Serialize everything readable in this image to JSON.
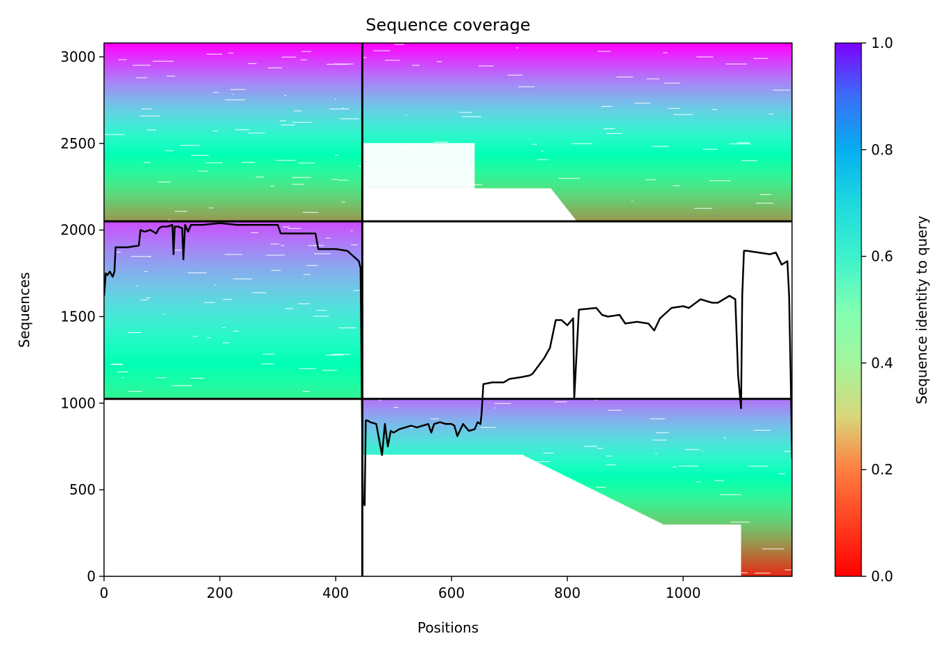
{
  "chart_data": {
    "type": "heatmap",
    "title": "Sequence coverage",
    "xlabel": "Positions",
    "ylabel": "Sequences",
    "xlim": [
      0,
      1188
    ],
    "ylim": [
      0,
      3080
    ],
    "x_ticks": [
      0,
      200,
      400,
      600,
      800,
      1000
    ],
    "y_ticks": [
      0,
      500,
      1000,
      1500,
      2000,
      2500,
      3000
    ],
    "colorbar": {
      "label": "Sequence identity to query",
      "colormap": "rainbow_r",
      "range": [
        0,
        1
      ],
      "ticks": [
        0.0,
        0.2,
        0.4,
        0.6,
        0.8,
        1.0
      ],
      "tick_labels": [
        "0.0",
        "0.2",
        "0.4",
        "0.6",
        "0.8",
        "1.0"
      ]
    },
    "chain_boundaries_x": [
      446
    ],
    "block_boundaries_y": [
      1025,
      2050
    ],
    "blocks": [
      {
        "x": [
          0,
          446
        ],
        "y": [
          2050,
          3080
        ],
        "identity_top": 1.0,
        "identity_bottom": 0.2,
        "density": "full"
      },
      {
        "x": [
          446,
          1188
        ],
        "y": [
          2050,
          3080
        ],
        "identity_top": 1.0,
        "identity_bottom": 0.2,
        "density": "partial"
      },
      {
        "x": [
          0,
          446
        ],
        "y": [
          1025,
          2050
        ],
        "identity_top": 0.9,
        "identity_bottom": 0.4,
        "density": "full"
      },
      {
        "x": [
          446,
          1188
        ],
        "y": [
          0,
          1025
        ],
        "identity_top": 0.85,
        "identity_bottom": 0.05,
        "density": "partial"
      }
    ],
    "coverage_line": {
      "name": "",
      "x": [
        0,
        3,
        6,
        10,
        15,
        18,
        20,
        25,
        40,
        60,
        63,
        70,
        80,
        90,
        95,
        100,
        110,
        118,
        120,
        122,
        128,
        135,
        137,
        140,
        145,
        150,
        170,
        200,
        230,
        260,
        300,
        305,
        320,
        340,
        365,
        370,
        400,
        420,
        430,
        440,
        443,
        445,
        447,
        450,
        452,
        455,
        460,
        470,
        480,
        485,
        490,
        495,
        500,
        510,
        520,
        530,
        540,
        550,
        560,
        565,
        570,
        580,
        590,
        600,
        605,
        610,
        620,
        630,
        640,
        645,
        650,
        652,
        655,
        670,
        690,
        700,
        720,
        735,
        740,
        760,
        770,
        780,
        790,
        800,
        805,
        810,
        812,
        820,
        850,
        860,
        870,
        890,
        900,
        920,
        940,
        950,
        960,
        980,
        1000,
        1010,
        1030,
        1050,
        1060,
        1080,
        1090,
        1095,
        1100,
        1102,
        1105,
        1110,
        1130,
        1150,
        1160,
        1170,
        1180,
        1183,
        1186,
        1188
      ],
      "y": [
        1620,
        1750,
        1740,
        1760,
        1730,
        1760,
        1900,
        1900,
        1900,
        1910,
        2000,
        1990,
        2000,
        1980,
        2010,
        2020,
        2020,
        2030,
        1860,
        2020,
        2020,
        2010,
        1830,
        2030,
        1990,
        2030,
        2030,
        2040,
        2030,
        2030,
        2030,
        1980,
        1980,
        1980,
        1980,
        1890,
        1890,
        1880,
        1850,
        1820,
        1780,
        1100,
        430,
        410,
        900,
        900,
        890,
        880,
        700,
        880,
        750,
        840,
        830,
        850,
        860,
        870,
        860,
        870,
        880,
        830,
        880,
        890,
        880,
        880,
        870,
        810,
        880,
        840,
        850,
        890,
        880,
        940,
        1110,
        1120,
        1120,
        1140,
        1150,
        1160,
        1170,
        1260,
        1320,
        1480,
        1480,
        1450,
        1470,
        1490,
        1030,
        1540,
        1550,
        1510,
        1500,
        1510,
        1460,
        1470,
        1460,
        1420,
        1490,
        1550,
        1560,
        1550,
        1600,
        1580,
        1580,
        1620,
        1600,
        1160,
        970,
        1620,
        1880,
        1880,
        1870,
        1860,
        1870,
        1800,
        1820,
        1620,
        1100,
        680
      ]
    }
  }
}
